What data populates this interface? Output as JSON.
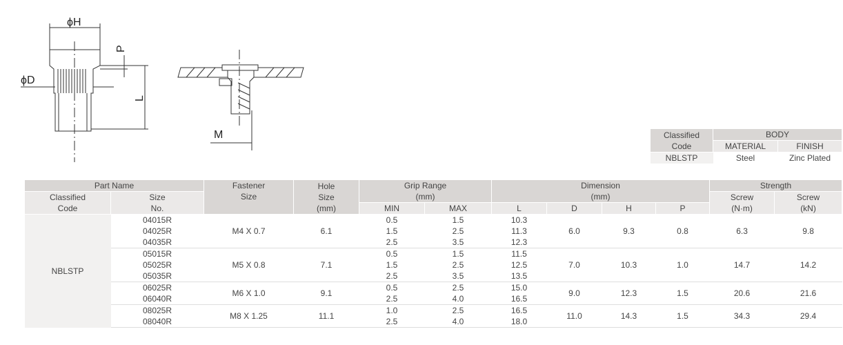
{
  "drawing": {
    "h": "ϕH",
    "p": "P",
    "d": "ϕD",
    "l": "L",
    "m": "M"
  },
  "body_table": {
    "classified": [
      "Classified",
      "Code"
    ],
    "body": "BODY",
    "material": "MATERIAL",
    "finish": "FINISH",
    "row": [
      "NBLSTP",
      "Steel",
      "Zinc Plated"
    ]
  },
  "table": {
    "header": {
      "part_name": "Part Name",
      "classified": [
        "Classified",
        "Code"
      ],
      "size_no": [
        "Size",
        "No."
      ],
      "fastener": [
        "Fastener",
        "Size"
      ],
      "hole": [
        "Hole",
        "Size",
        "(mm)"
      ],
      "grip": [
        "Grip Range",
        "(mm)"
      ],
      "min": "MIN",
      "max": "MAX",
      "dimension": [
        "Dimension",
        "(mm)"
      ],
      "l": "L",
      "d": "D",
      "h": "H",
      "p": "P",
      "strength": "Strength",
      "screw_nm": [
        "Screw",
        "(N·m)"
      ],
      "screw_kn": [
        "Screw",
        "(kN)"
      ]
    },
    "code": "NBLSTP",
    "groups": [
      {
        "fastener": "M4 X 0.7",
        "hole": "6.1",
        "d": "6.0",
        "h": "9.3",
        "p": "0.8",
        "nm": "6.3",
        "kn": "9.8",
        "items": [
          [
            "04015R",
            "0.5",
            "1.5",
            "10.3"
          ],
          [
            "04025R",
            "1.5",
            "2.5",
            "11.3"
          ],
          [
            "04035R",
            "2.5",
            "3.5",
            "12.3"
          ]
        ]
      },
      {
        "fastener": "M5 X 0.8",
        "hole": "7.1",
        "d": "7.0",
        "h": "10.3",
        "p": "1.0",
        "nm": "14.7",
        "kn": "14.2",
        "items": [
          [
            "05015R",
            "0.5",
            "1.5",
            "11.5"
          ],
          [
            "05025R",
            "1.5",
            "2.5",
            "12.5"
          ],
          [
            "05035R",
            "2.5",
            "3.5",
            "13.5"
          ]
        ]
      },
      {
        "fastener": "M6 X 1.0",
        "hole": "9.1",
        "d": "9.0",
        "h": "12.3",
        "p": "1.5",
        "nm": "20.6",
        "kn": "21.6",
        "items": [
          [
            "06025R",
            "0.5",
            "2.5",
            "15.0"
          ],
          [
            "06040R",
            "2.5",
            "4.0",
            "16.5"
          ]
        ]
      },
      {
        "fastener": "M8 X 1.25",
        "hole": "11.1",
        "d": "11.0",
        "h": "14.3",
        "p": "1.5",
        "nm": "34.3",
        "kn": "29.4",
        "items": [
          [
            "08025R",
            "1.0",
            "2.5",
            "16.5"
          ],
          [
            "08040R",
            "2.5",
            "4.0",
            "18.0"
          ]
        ]
      }
    ]
  }
}
